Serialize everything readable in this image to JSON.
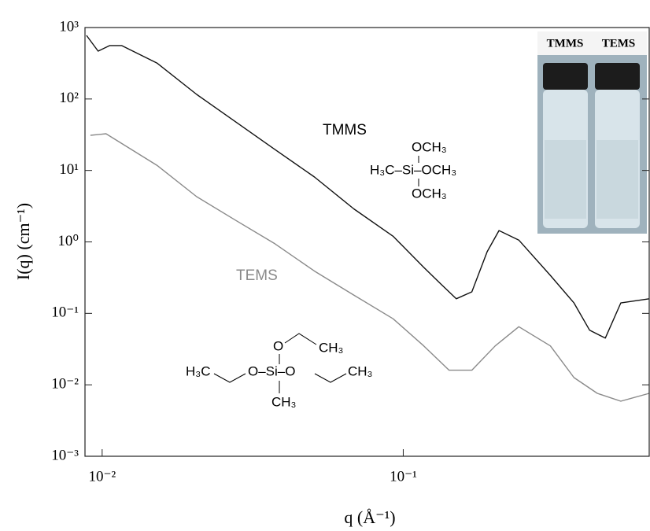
{
  "chart_data": {
    "type": "line",
    "xlabel": "q (Å⁻¹)",
    "ylabel": "I(q) (cm⁻¹)",
    "xscale": "log",
    "yscale": "log",
    "xlim": [
      0.00877,
      0.656
    ],
    "ylim": [
      0.001,
      1000
    ],
    "xticks": [
      {
        "value": 0.01,
        "label": "10⁻²"
      },
      {
        "value": 0.1,
        "label": "10⁻¹"
      }
    ],
    "yticks": [
      {
        "value": 0.001,
        "label": "10⁻³"
      },
      {
        "value": 0.01,
        "label": "10⁻²"
      },
      {
        "value": 0.1,
        "label": "10⁻¹"
      },
      {
        "value": 1,
        "label": "10⁰"
      },
      {
        "value": 10,
        "label": "10¹"
      },
      {
        "value": 100,
        "label": "10²"
      },
      {
        "value": 1000,
        "label": "10³"
      }
    ],
    "series": [
      {
        "name": "TMMS",
        "color": "#111111",
        "x": [
          0.00887,
          0.0097,
          0.0106,
          0.0116,
          0.0152,
          0.0206,
          0.0278,
          0.0375,
          0.0507,
          0.0685,
          0.0925,
          0.117,
          0.133,
          0.15,
          0.169,
          0.19,
          0.208,
          0.242,
          0.308,
          0.369,
          0.416,
          0.469,
          0.528,
          0.656
        ],
        "values": [
          776,
          468,
          560,
          560,
          319,
          116,
          47.6,
          19.6,
          8.1,
          2.9,
          1.2,
          0.44,
          0.26,
          0.16,
          0.2,
          0.73,
          1.44,
          1.06,
          0.34,
          0.14,
          0.058,
          0.045,
          0.14,
          0.16
        ]
      },
      {
        "name": "TEMS",
        "color": "#8a8a8a",
        "x": [
          0.00914,
          0.0103,
          0.0152,
          0.0206,
          0.0278,
          0.0375,
          0.0507,
          0.0685,
          0.0925,
          0.117,
          0.142,
          0.169,
          0.202,
          0.242,
          0.308,
          0.369,
          0.441,
          0.528,
          0.656
        ],
        "values": [
          31,
          32.6,
          11.8,
          4.3,
          2.0,
          0.94,
          0.39,
          0.18,
          0.084,
          0.035,
          0.016,
          0.016,
          0.035,
          0.065,
          0.035,
          0.0126,
          0.0076,
          0.0059,
          0.0076
        ]
      }
    ],
    "tmms_structure": [
      "OCH₃",
      "H₃C–Si–OCH₃",
      "OCH₃"
    ],
    "tems_structure": [
      "O",
      "CH₃",
      "H₃C",
      "O–Si–O",
      "CH₃",
      "CH₃"
    ],
    "inset_labels": [
      "TMMS",
      "TEMS"
    ]
  }
}
